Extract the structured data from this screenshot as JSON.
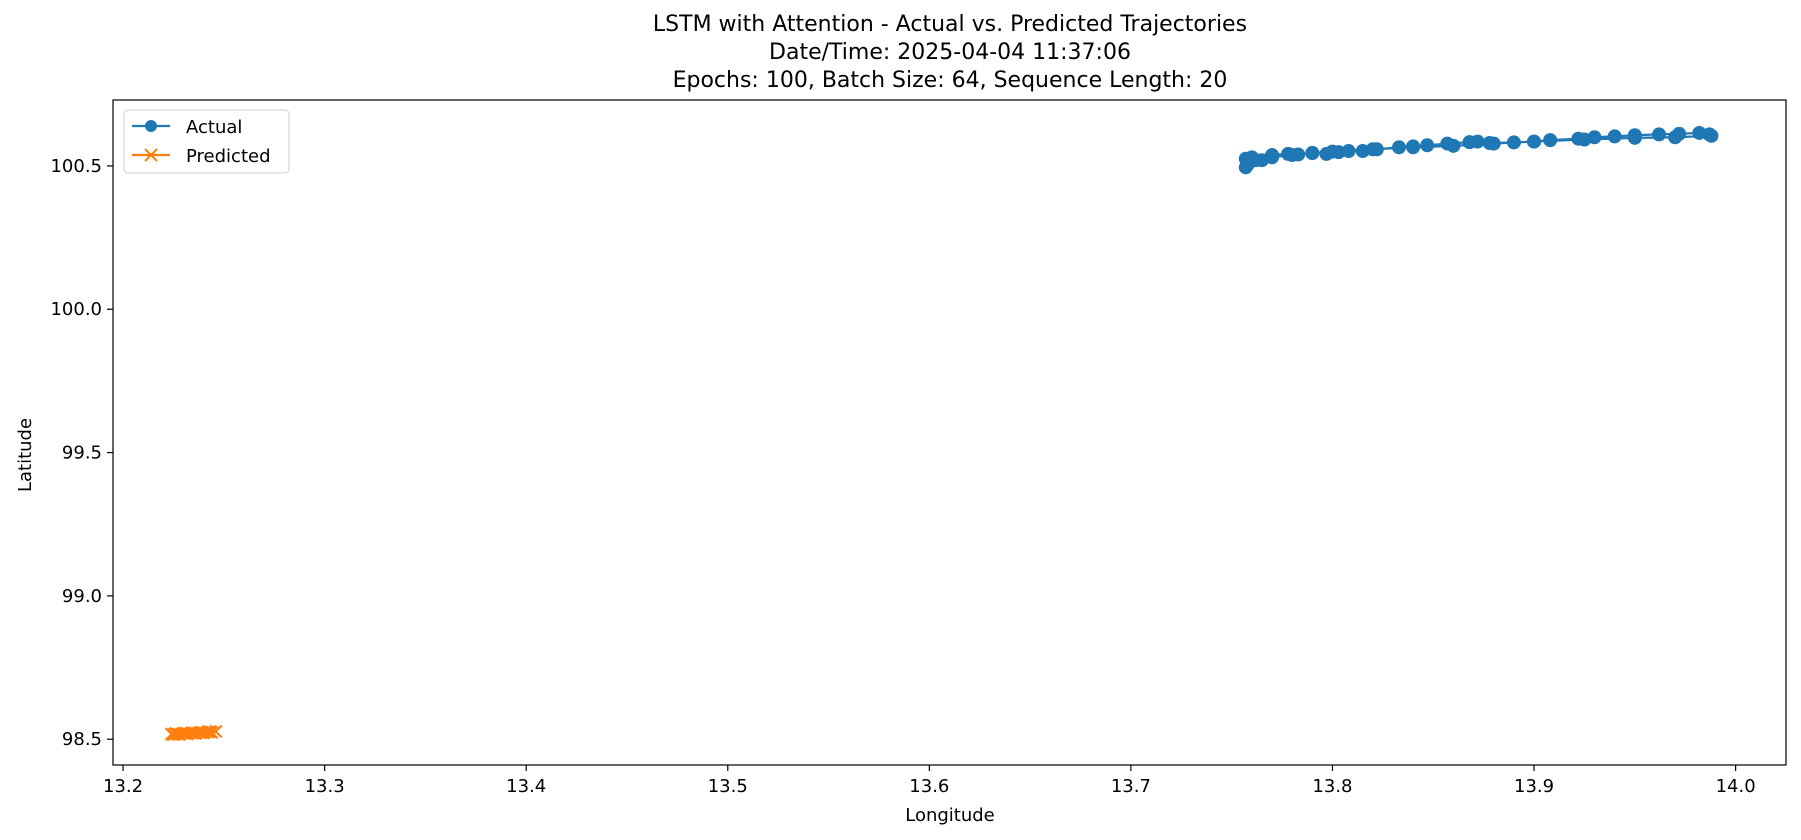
{
  "chart_data": {
    "type": "line",
    "title_lines": [
      "LSTM with Attention - Actual vs. Predicted Trajectories",
      "Date/Time: 2025-04-04 11:37:06",
      "Epochs: 100, Batch Size: 64, Sequence Length: 20"
    ],
    "xlabel": "Longitude",
    "ylabel": "Latitude",
    "xlim": [
      13.195,
      14.025
    ],
    "ylim": [
      98.41,
      100.73
    ],
    "xticks": [
      "13.2",
      "13.3",
      "13.4",
      "13.5",
      "13.6",
      "13.7",
      "13.8",
      "13.9",
      "14.0"
    ],
    "yticks": [
      "98.5",
      "99.0",
      "99.5",
      "100.0",
      "100.5"
    ],
    "legend_position": "upper-left",
    "grid": false,
    "series": [
      {
        "name": "Actual",
        "color": "#1f77b4",
        "marker": "circle",
        "x": [
          13.757,
          13.76,
          13.765,
          13.77,
          13.778,
          13.783,
          13.79,
          13.797,
          13.803,
          13.808,
          13.815,
          13.822,
          13.833,
          13.84,
          13.847,
          13.857,
          13.868,
          13.872,
          13.878,
          13.89,
          13.9,
          13.908,
          13.922,
          13.93,
          13.94,
          13.95,
          13.962,
          13.972,
          13.982,
          13.987,
          13.988,
          13.97,
          13.95,
          13.925,
          13.9,
          13.88,
          13.86,
          13.84,
          13.82,
          13.8,
          13.79,
          13.78,
          13.77,
          13.762,
          13.758,
          13.757
        ],
        "y": [
          100.525,
          100.53,
          100.52,
          100.538,
          100.542,
          100.54,
          100.545,
          100.542,
          100.548,
          100.552,
          100.552,
          100.558,
          100.565,
          100.568,
          100.572,
          100.578,
          100.583,
          100.585,
          100.58,
          100.582,
          100.585,
          100.59,
          100.595,
          100.6,
          100.603,
          100.607,
          100.61,
          100.612,
          100.615,
          100.61,
          100.605,
          100.6,
          100.598,
          100.592,
          100.585,
          100.578,
          100.57,
          100.565,
          100.558,
          100.55,
          100.545,
          100.538,
          100.53,
          100.52,
          100.505,
          100.495
        ]
      },
      {
        "name": "Predicted",
        "color": "#ff7f0e",
        "marker": "x",
        "x": [
          13.224,
          13.226,
          13.228,
          13.23,
          13.232,
          13.234,
          13.236,
          13.238,
          13.24,
          13.242,
          13.244,
          13.246,
          13.243,
          13.239,
          13.235,
          13.231,
          13.227,
          13.225
        ],
        "y": [
          98.518,
          98.52,
          98.517,
          98.521,
          98.519,
          98.522,
          98.52,
          98.523,
          98.522,
          98.525,
          98.524,
          98.527,
          98.526,
          98.524,
          98.522,
          98.52,
          98.518,
          98.516
        ]
      }
    ]
  }
}
